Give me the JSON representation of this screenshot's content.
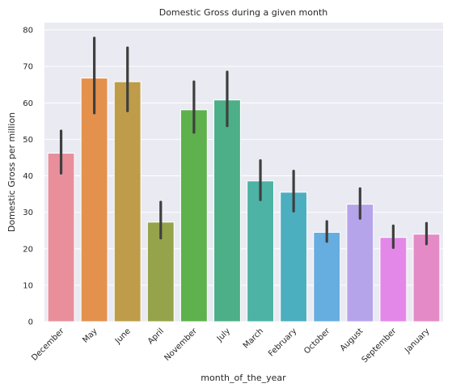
{
  "chart_data": {
    "type": "bar",
    "title": "Domestic Gross during a given month",
    "xlabel": "month_of_the_year",
    "ylabel": "Domestic Gross per million",
    "ylim": [
      0,
      82
    ],
    "yticks": [
      0,
      10,
      20,
      30,
      40,
      50,
      60,
      70,
      80
    ],
    "grid": true,
    "categories": [
      "December",
      "May",
      "June",
      "April",
      "November",
      "July",
      "March",
      "February",
      "October",
      "August",
      "September",
      "January"
    ],
    "values": [
      46.2,
      66.8,
      65.8,
      27.3,
      58.1,
      60.8,
      38.6,
      35.5,
      24.5,
      32.2,
      23.1,
      24.0
    ],
    "error_low": [
      40.7,
      57.2,
      57.8,
      22.9,
      51.9,
      53.7,
      33.4,
      30.3,
      22.0,
      28.3,
      20.3,
      21.3
    ],
    "error_high": [
      52.3,
      77.8,
      75.1,
      32.8,
      65.8,
      68.5,
      44.2,
      41.3,
      27.5,
      36.5,
      26.3,
      27.0
    ],
    "colors": [
      "#E88F9B",
      "#E4914E",
      "#BE9C4A",
      "#95A44A",
      "#5EB14D",
      "#4CAF87",
      "#4DB3A4",
      "#4CAFC0",
      "#66ADE0",
      "#B6A4EA",
      "#E388E9",
      "#E48BC7"
    ]
  }
}
